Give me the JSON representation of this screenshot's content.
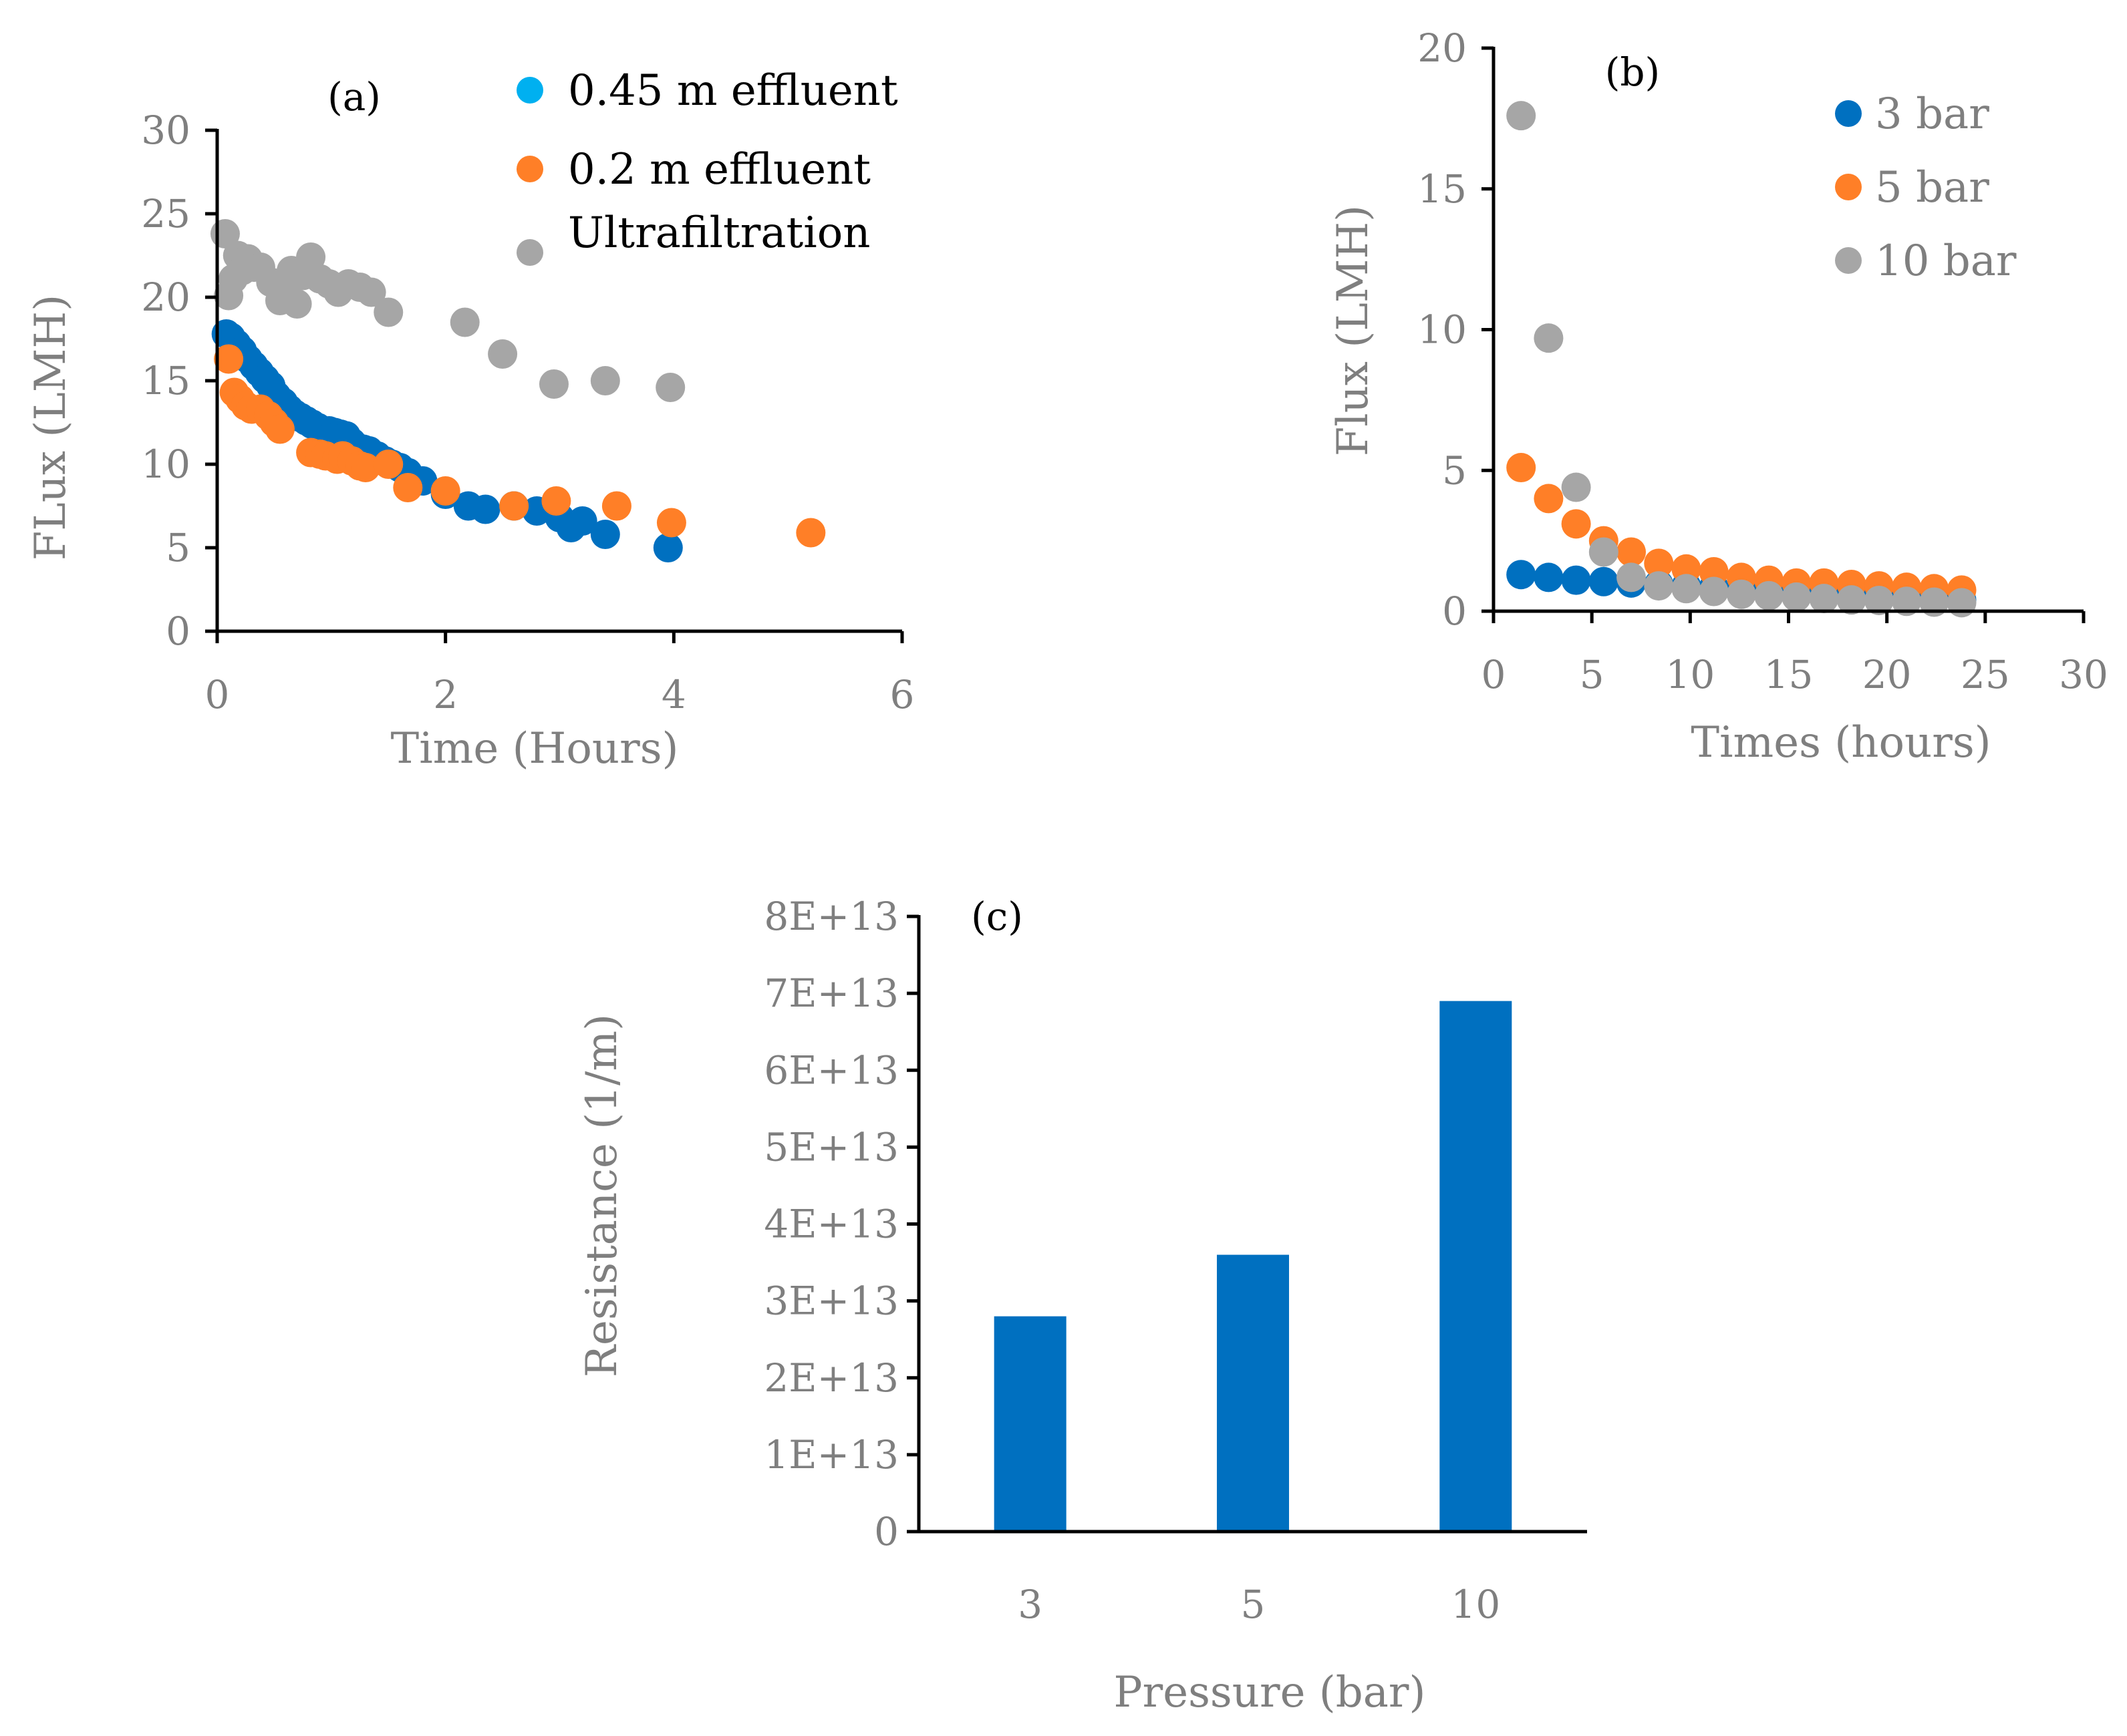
{
  "colors": {
    "blue_dark": "#0070c0",
    "blue_light": "#00b0f0",
    "orange": "#ff7f27",
    "gray": "#a6a6a6",
    "axis_text": "#7f7f7f",
    "bar": "#0070c0"
  },
  "chart_data": [
    {
      "id": "a",
      "type": "scatter",
      "panel_label": "(a)",
      "xlabel": "Time (Hours)",
      "ylabel": "FLux (LMH)",
      "xlim": [
        0,
        6
      ],
      "ylim": [
        0,
        30
      ],
      "xticks": [
        0,
        2,
        4,
        6
      ],
      "yticks": [
        0,
        5,
        10,
        15,
        20,
        25,
        30
      ],
      "legend_position": "top-right",
      "series": [
        {
          "name": "0.45 m effluent",
          "legend_color": "#00b0f0",
          "marker_color": "#0070c0",
          "x": [
            0.08,
            0.12,
            0.17,
            0.22,
            0.27,
            0.32,
            0.37,
            0.42,
            0.47,
            0.52,
            0.58,
            0.63,
            0.68,
            0.73,
            0.78,
            0.83,
            0.88,
            0.93,
            0.98,
            1.03,
            1.08,
            1.13,
            1.18,
            1.23,
            1.28,
            1.33,
            1.4,
            1.47,
            1.53,
            1.6,
            1.67,
            1.8,
            2.0,
            2.2,
            2.35,
            2.6,
            2.8,
            3.0,
            3.1,
            3.2,
            3.4,
            3.95
          ],
          "y": [
            17.8,
            17.6,
            17.2,
            16.8,
            16.3,
            15.9,
            15.5,
            15.1,
            14.7,
            14.1,
            13.7,
            13.3,
            13.0,
            12.8,
            12.6,
            12.4,
            12.2,
            12.0,
            12.0,
            11.9,
            11.8,
            11.7,
            11.3,
            11.0,
            10.9,
            10.8,
            10.5,
            10.2,
            10.0,
            9.8,
            9.5,
            9.0,
            8.2,
            7.5,
            7.3,
            7.5,
            7.2,
            6.8,
            6.2,
            6.6,
            5.8,
            5.0
          ]
        },
        {
          "name": "0.2 m effluent",
          "legend_color": "#ff7f27",
          "marker_color": "#ff7f27",
          "x": [
            0.1,
            0.15,
            0.2,
            0.25,
            0.3,
            0.38,
            0.45,
            0.5,
            0.55,
            0.82,
            0.9,
            0.95,
            1.05,
            1.1,
            1.18,
            1.25,
            1.3,
            1.5,
            1.67,
            2.0,
            2.6,
            2.97,
            3.5,
            3.98,
            5.2
          ],
          "y": [
            16.3,
            14.3,
            13.9,
            13.5,
            13.3,
            13.3,
            12.9,
            12.5,
            12.1,
            10.7,
            10.6,
            10.5,
            10.3,
            10.5,
            10.2,
            9.9,
            9.8,
            10.0,
            8.6,
            8.4,
            7.5,
            7.8,
            7.5,
            6.5,
            5.9
          ]
        },
        {
          "name": "Ultrafiltration",
          "legend_color": "#a6a6a6",
          "marker_color": "#a6a6a6",
          "x": [
            0.07,
            0.1,
            0.14,
            0.18,
            0.22,
            0.27,
            0.32,
            0.38,
            0.47,
            0.55,
            0.6,
            0.65,
            0.7,
            0.75,
            0.82,
            0.9,
            0.98,
            1.06,
            1.15,
            1.25,
            1.35,
            1.5,
            2.17,
            2.5,
            2.95,
            3.4,
            3.97
          ],
          "y": [
            23.8,
            20.1,
            21.1,
            22.5,
            21.6,
            22.3,
            21.8,
            21.8,
            20.9,
            19.8,
            20.3,
            21.6,
            19.6,
            21.3,
            22.4,
            21.1,
            20.8,
            20.3,
            20.8,
            20.6,
            20.3,
            19.1,
            18.5,
            16.6,
            14.8,
            15.0,
            14.6
          ]
        }
      ]
    },
    {
      "id": "b",
      "type": "scatter",
      "panel_label": "(b)",
      "xlabel": "Times (hours)",
      "ylabel": "Flux (LMH)",
      "xlim": [
        0,
        30
      ],
      "ylim": [
        0,
        20
      ],
      "xticks": [
        0,
        5,
        10,
        15,
        20,
        25,
        30
      ],
      "yticks": [
        0,
        5,
        10,
        15,
        20
      ],
      "legend_position": "top-right",
      "series": [
        {
          "name": "3 bar",
          "color": "#0070c0",
          "x": [
            1.4,
            2.8,
            4.2,
            5.6,
            7.0,
            8.4,
            9.8,
            11.2,
            12.6,
            14.0,
            15.4,
            16.8,
            18.2,
            19.6,
            21.0,
            22.4,
            23.8
          ],
          "y": [
            1.3,
            1.2,
            1.1,
            1.05,
            1.0,
            0.95,
            0.9,
            0.85,
            0.8,
            0.75,
            0.7,
            0.65,
            0.6,
            0.55,
            0.5,
            0.45,
            0.4
          ]
        },
        {
          "name": "5 bar",
          "color": "#ff7f27",
          "x": [
            1.4,
            2.8,
            4.2,
            5.6,
            7.0,
            8.4,
            9.8,
            11.2,
            12.6,
            14.0,
            15.4,
            16.8,
            18.2,
            19.6,
            21.0,
            22.4,
            23.8
          ],
          "y": [
            5.1,
            4.0,
            3.1,
            2.5,
            2.1,
            1.7,
            1.5,
            1.4,
            1.2,
            1.1,
            1.0,
            1.0,
            0.95,
            0.9,
            0.85,
            0.8,
            0.75
          ]
        },
        {
          "name": "10 bar",
          "color": "#a6a6a6",
          "x": [
            1.4,
            2.8,
            4.2,
            5.6,
            7.0,
            8.4,
            9.8,
            11.2,
            12.6,
            14.0,
            15.4,
            16.8,
            18.2,
            19.6,
            21.0,
            22.4,
            23.8
          ],
          "y": [
            17.6,
            9.7,
            4.4,
            2.1,
            1.2,
            0.9,
            0.8,
            0.7,
            0.6,
            0.55,
            0.5,
            0.45,
            0.4,
            0.38,
            0.35,
            0.32,
            0.3
          ]
        }
      ]
    },
    {
      "id": "c",
      "type": "bar",
      "panel_label": "(c)",
      "xlabel": "Pressure (bar)",
      "ylabel": "Resistance (1/m)",
      "categories": [
        "3",
        "5",
        "10"
      ],
      "values": [
        28000000000000,
        36000000000000,
        69000000000000
      ],
      "ylim": [
        0,
        80000000000000
      ],
      "ytick_labels": [
        "0",
        "1E+13",
        "2E+13",
        "3E+13",
        "4E+13",
        "5E+13",
        "6E+13",
        "7E+13",
        "8E+13"
      ]
    }
  ]
}
